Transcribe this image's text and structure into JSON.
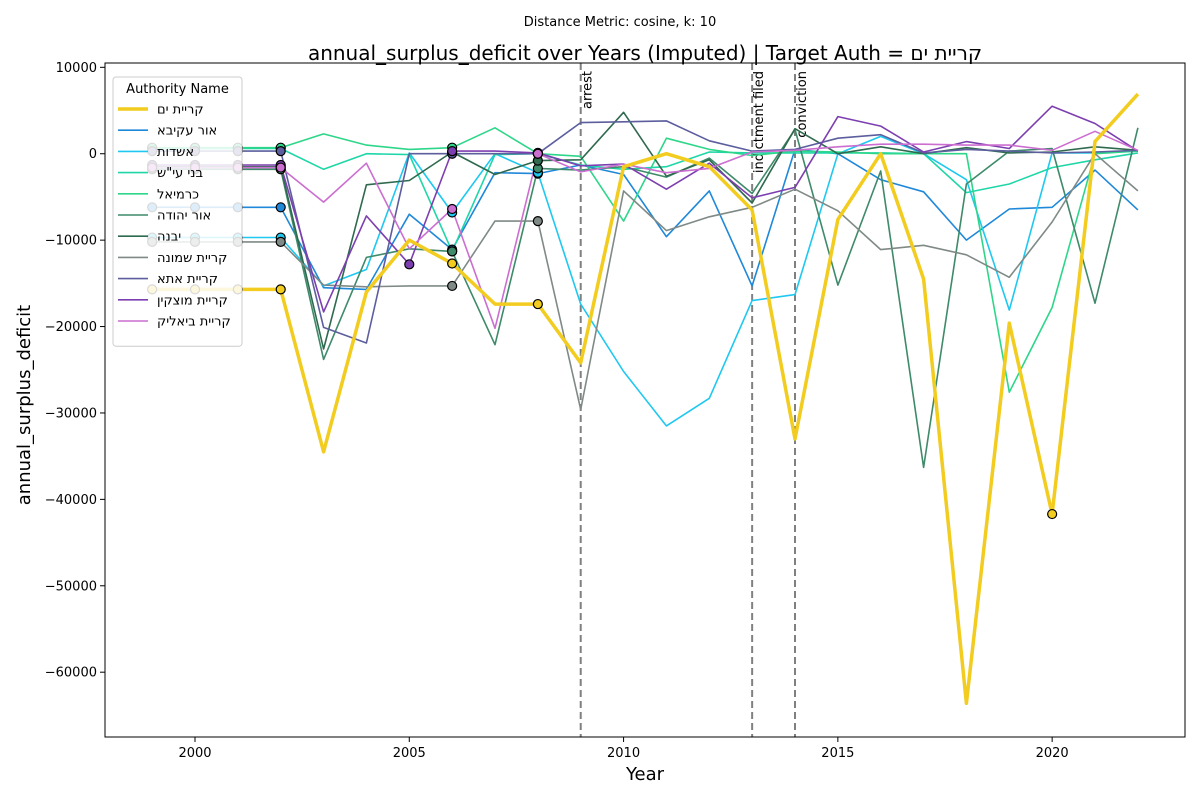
{
  "chart_data": {
    "type": "line",
    "subtitle": "Distance Metric: cosine, k: 10",
    "title": "annual_surplus_deficit over Years (Imputed) | Target Auth = קריית ים",
    "xlabel": "Year",
    "ylabel": "annual_surplus_deficit",
    "xlim": [
      1997.9,
      2023.1
    ],
    "ylim": [
      -67500,
      10500
    ],
    "x_ticks": [
      2000,
      2005,
      2010,
      2015,
      2020
    ],
    "x_tick_labels": [
      "2000",
      "2005",
      "2010",
      "2015",
      "2020"
    ],
    "y_ticks": [
      10000,
      0,
      -10000,
      -20000,
      -30000,
      -40000,
      -50000,
      -60000
    ],
    "y_tick_labels": [
      "10000",
      "0",
      "−10000",
      "−20000",
      "−30000",
      "−40000",
      "−50000",
      "−60000"
    ],
    "grid": false,
    "legend": {
      "title": "Authority Name",
      "placement": "upper left"
    },
    "events": [
      {
        "x": 2009,
        "label": "arrest"
      },
      {
        "x": 2013,
        "label": "indictment filed"
      },
      {
        "x": 2014,
        "label": "conviction"
      }
    ],
    "x": [
      1999,
      2000,
      2001,
      2002,
      2003,
      2004,
      2005,
      2006,
      2007,
      2008,
      2009,
      2010,
      2011,
      2012,
      2013,
      2014,
      2015,
      2016,
      2017,
      2018,
      2019,
      2020,
      2021,
      2022
    ],
    "series": [
      {
        "name": "קריית ים",
        "color": "#f2cc1f",
        "width": 3.5,
        "values": [
          -15700,
          -15700,
          -15700,
          -15700,
          -34500,
          -16000,
          -10000,
          -12700,
          -17400,
          -17400,
          -24200,
          -1500,
          0,
          -1500,
          -6500,
          -33000,
          -7600,
          0,
          -14500,
          -63600,
          -19600,
          -41700,
          1400,
          6900
        ],
        "imputed": [
          1999,
          2000,
          2001,
          2002,
          2006,
          2008,
          2020
        ]
      },
      {
        "name": "אור עקיבא",
        "color": "#1f88d9",
        "width": 1.6,
        "values": [
          -6200,
          -6200,
          -6200,
          -6200,
          -15500,
          -15700,
          -7000,
          -11100,
          -2200,
          -2300,
          -1300,
          -2400,
          -9600,
          -4300,
          -15300,
          500,
          0,
          -3000,
          -4400,
          -10000,
          -6400,
          -6200,
          -1900,
          -6500
        ],
        "imputed": [
          1999,
          2000,
          2001,
          2002,
          2006,
          2008
        ]
      },
      {
        "name": "אשדות",
        "color": "#1ec8f0",
        "width": 1.6,
        "values": [
          -9700,
          -9700,
          -9700,
          -9700,
          -15300,
          -13400,
          100,
          -6800,
          0,
          -2200,
          -17400,
          -25200,
          -31500,
          -28300,
          -17000,
          -16300,
          0,
          2000,
          0,
          -3000,
          -18100,
          100,
          100,
          300
        ],
        "imputed": [
          1999,
          2000,
          2001,
          2002,
          2006,
          2008
        ]
      },
      {
        "name": "בני עי\"ש",
        "color": "#1fd6a8",
        "width": 1.6,
        "values": [
          600,
          600,
          600,
          600,
          -1800,
          0,
          -100,
          -11300,
          -100,
          0,
          -1300,
          -1800,
          -1500,
          200,
          100,
          100,
          100,
          100,
          0,
          -4500,
          -3500,
          -1600,
          -700,
          100
        ],
        "imputed": [
          1999,
          2000,
          2001,
          2002,
          2006,
          2008
        ]
      },
      {
        "name": "כרמיאל",
        "color": "#2ed68a",
        "width": 1.6,
        "values": [
          700,
          700,
          700,
          700,
          2300,
          1000,
          500,
          700,
          3000,
          0,
          -300,
          -7800,
          1800,
          500,
          -200,
          300,
          200,
          0,
          0,
          0,
          -27600,
          -17800,
          0,
          300
        ],
        "imputed": [
          1999,
          2000,
          2001,
          2002,
          2006,
          2008
        ]
      },
      {
        "name": "אור יהודה",
        "color": "#3e8a6a",
        "width": 1.6,
        "values": [
          -1800,
          -1800,
          -1800,
          -1800,
          -23800,
          -12000,
          -11000,
          -11300,
          -22100,
          -1700,
          -1900,
          -1500,
          -2700,
          -500,
          -4600,
          2800,
          -15200,
          -2000,
          -36300,
          -3500,
          300,
          600,
          -17300,
          3000
        ],
        "imputed": [
          1999,
          2000,
          2001,
          2002,
          2006,
          2008
        ]
      },
      {
        "name": "יבנה",
        "color": "#2f6a4f",
        "width": 1.6,
        "values": [
          -1500,
          -1500,
          -1500,
          -1500,
          -22600,
          -3600,
          -3100,
          200,
          -2400,
          -800,
          -700,
          4800,
          -2600,
          -700,
          -5700,
          2900,
          0,
          800,
          0,
          700,
          100,
          200,
          800,
          400
        ],
        "imputed": [
          1999,
          2000,
          2001,
          2002,
          2006,
          2008
        ]
      },
      {
        "name": "קריית שמונה",
        "color": "#7f8a86",
        "width": 1.6,
        "values": [
          -10200,
          -10200,
          -10200,
          -10200,
          -15200,
          -15400,
          -15300,
          -15300,
          -7800,
          -7800,
          -29600,
          -4300,
          -8900,
          -7300,
          -6200,
          -4100,
          -6600,
          -11100,
          -10600,
          -11700,
          -14300,
          -7900,
          0,
          -4300
        ],
        "imputed": [
          1999,
          2000,
          2001,
          2002,
          2006,
          2008
        ]
      },
      {
        "name": "קריית אתא",
        "color": "#5c5e9e",
        "width": 1.6,
        "values": [
          300,
          300,
          300,
          300,
          -20100,
          -21900,
          0,
          0,
          0,
          0,
          3600,
          3700,
          3800,
          1500,
          300,
          500,
          1800,
          2200,
          100,
          500,
          300,
          100,
          200,
          400
        ],
        "imputed": [
          1999,
          2000,
          2001,
          2002,
          2006,
          2008
        ]
      },
      {
        "name": "קריית מוצקין",
        "color": "#7d3fb0",
        "width": 1.6,
        "values": [
          -1300,
          -1300,
          -1300,
          -1300,
          -18300,
          -7200,
          -12800,
          300,
          300,
          100,
          -1400,
          -1200,
          -4100,
          -1100,
          -5100,
          -3900,
          4300,
          3200,
          200,
          1400,
          600,
          5500,
          3500,
          300
        ],
        "imputed": [
          1999,
          2000,
          2001,
          2002,
          2005,
          2006,
          2008
        ]
      },
      {
        "name": "קריית ביאליק",
        "color": "#cc6ed0",
        "width": 1.6,
        "values": [
          -1600,
          -1600,
          -1600,
          -1600,
          -5600,
          -1100,
          -11000,
          -6400,
          -20200,
          0,
          -2100,
          -1200,
          -2200,
          -1700,
          200,
          400,
          800,
          1100,
          1100,
          1000,
          1000,
          400,
          2600,
          400
        ],
        "imputed": [
          1999,
          2000,
          2001,
          2002,
          2006,
          2008
        ]
      }
    ]
  }
}
